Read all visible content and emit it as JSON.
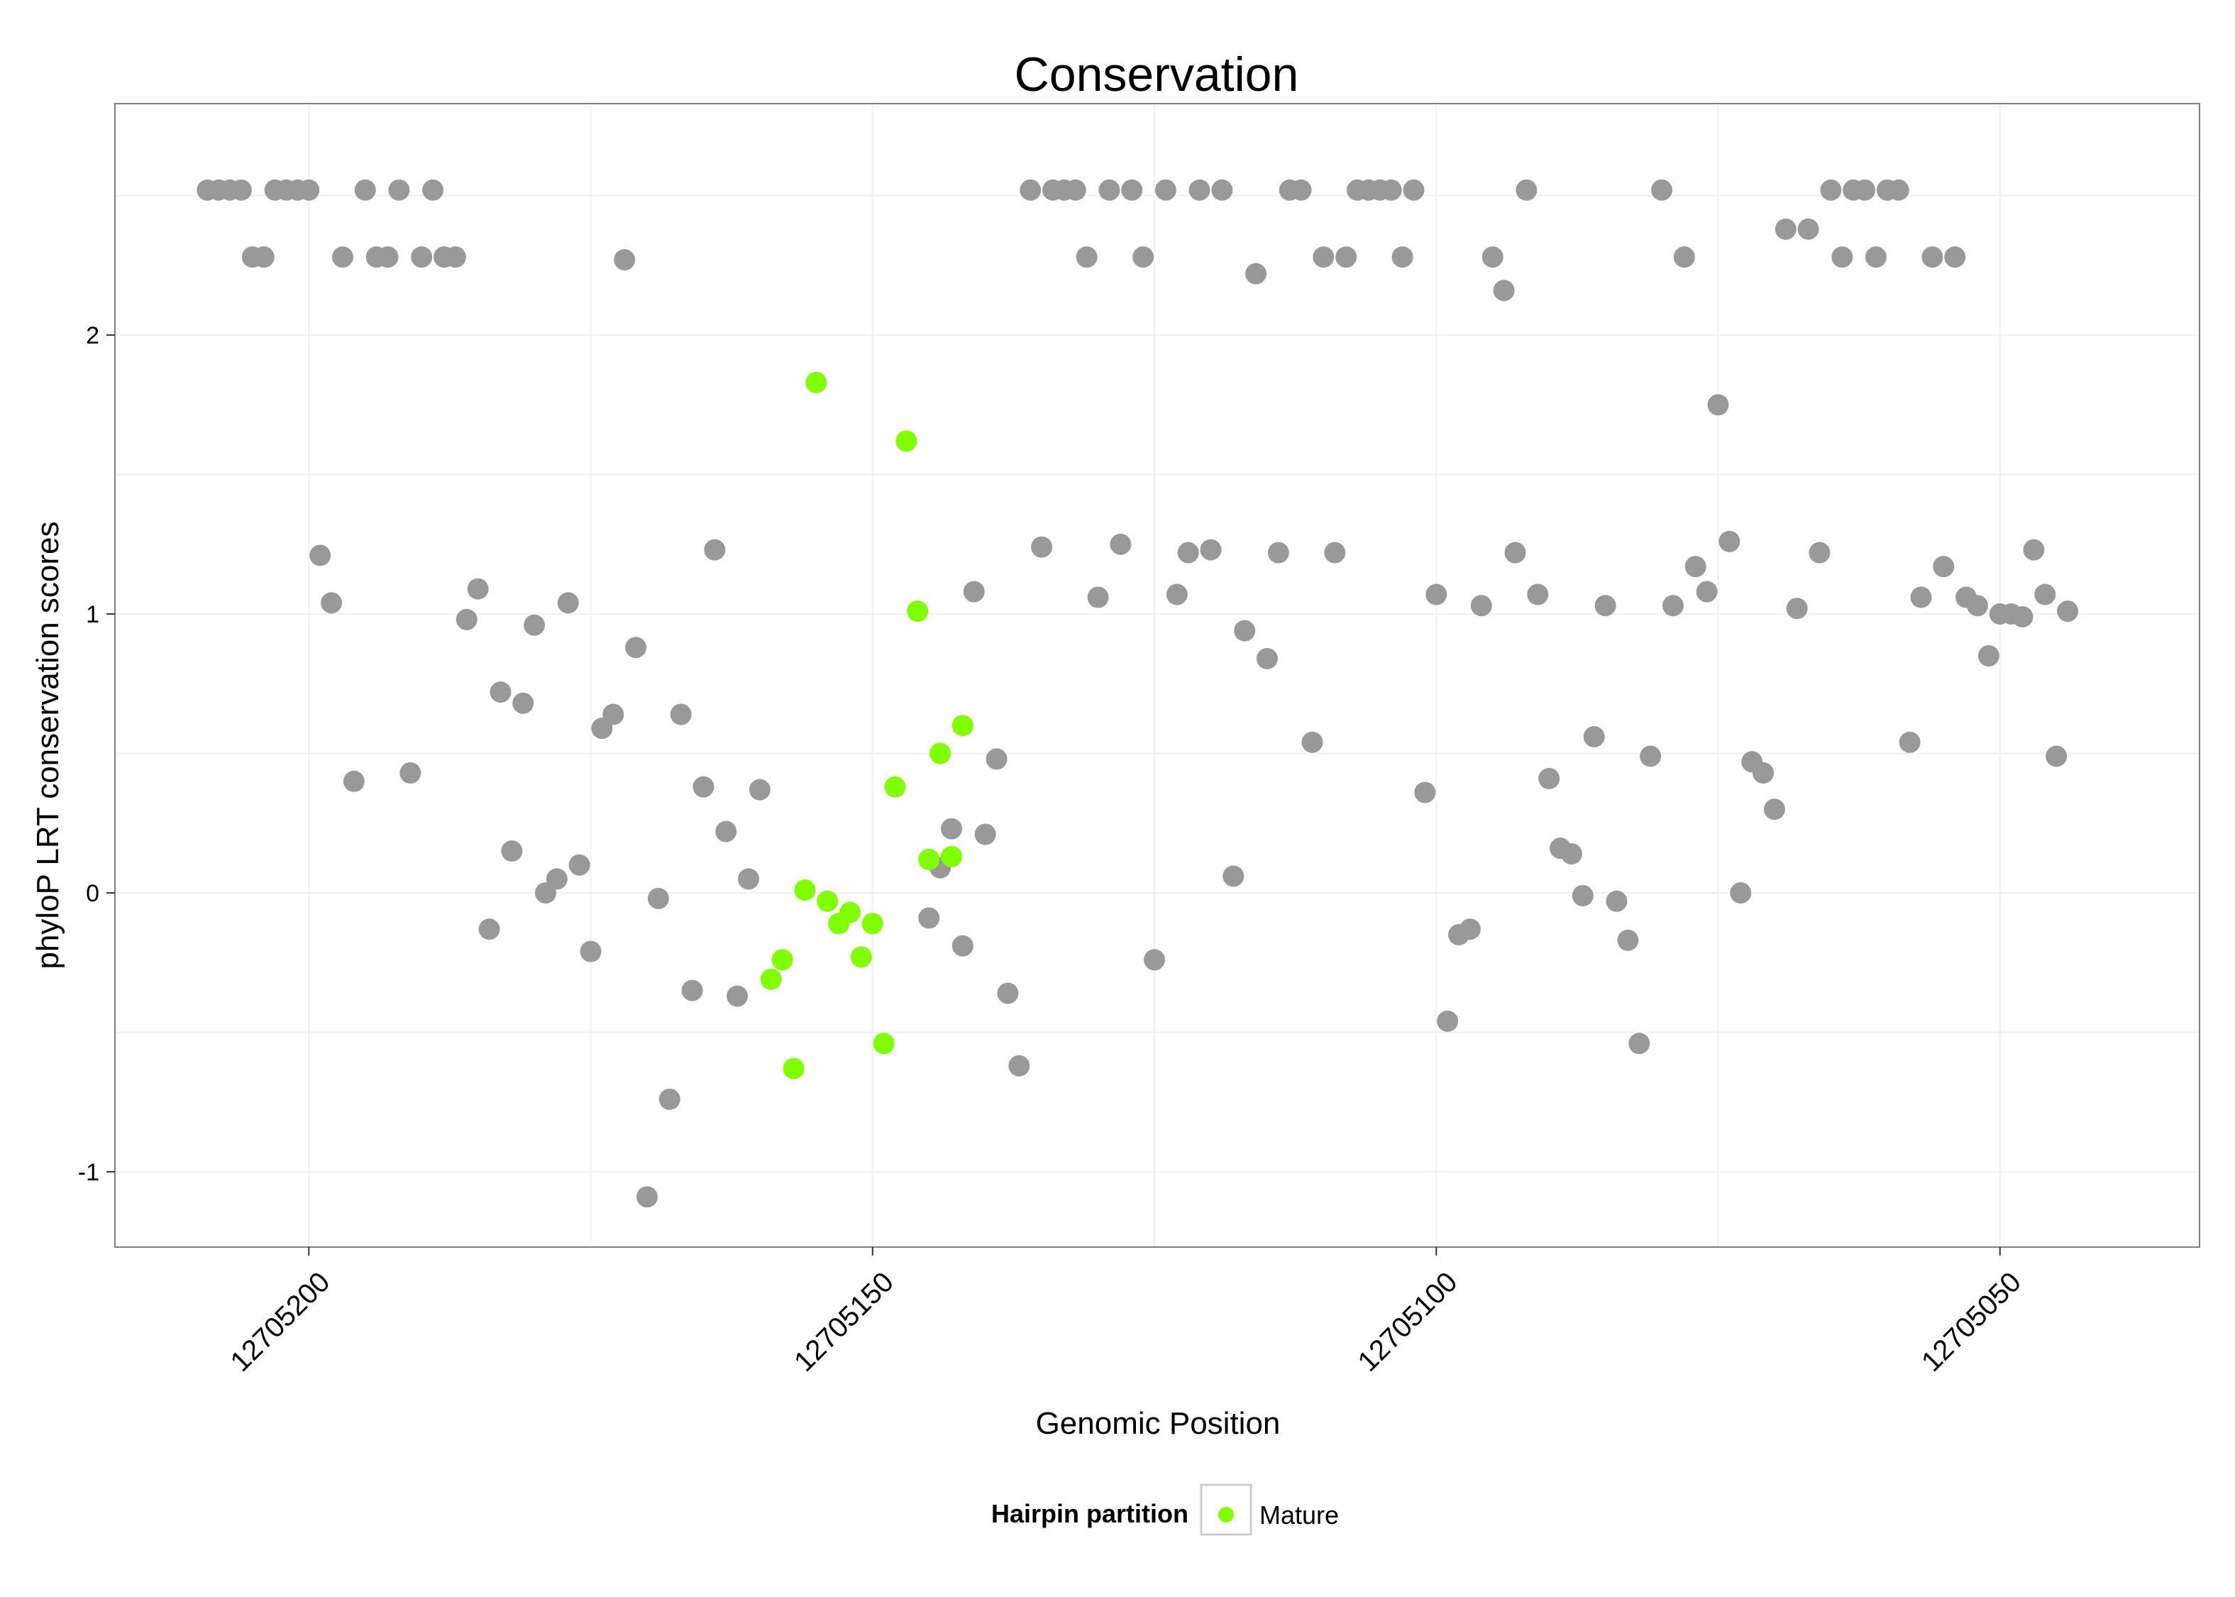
{
  "colors": {
    "background": "#ffffff",
    "panel_border": "#7f7f7f",
    "grid": "#f0f0f0",
    "other_point": "#999999",
    "mature_point": "#7fff00"
  },
  "chart_data": {
    "type": "scatter",
    "title": "Conservation",
    "xlabel": "Genomic Position",
    "ylabel": "phyloP LRT conservation scores",
    "xlim": [
      12705217.2,
      12705032.3
    ],
    "x_reversed": true,
    "ylim": [
      -1.27,
      2.83
    ],
    "x_ticks": [
      12705200,
      12705150,
      12705100,
      12705050
    ],
    "x_tick_labels": [
      "12705200",
      "12705150",
      "12705100",
      "12705050"
    ],
    "y_ticks": [
      -1,
      0,
      1,
      2
    ],
    "y_tick_labels": [
      "-1",
      "0",
      "1",
      "2"
    ],
    "grid": true,
    "legend": {
      "title": "Hairpin partition",
      "position": "bottom",
      "entries": [
        {
          "label": "Mature",
          "color": "#7fff00"
        }
      ]
    },
    "series": [
      {
        "name": "Other",
        "color": "#999999",
        "in_legend": false,
        "points": [
          [
            12705209,
            2.52
          ],
          [
            12705208,
            2.52
          ],
          [
            12705207,
            2.52
          ],
          [
            12705206,
            2.52
          ],
          [
            12705205,
            2.28
          ],
          [
            12705204,
            2.28
          ],
          [
            12705203,
            2.52
          ],
          [
            12705202,
            2.52
          ],
          [
            12705201,
            2.52
          ],
          [
            12705200,
            2.52
          ],
          [
            12705199,
            1.21
          ],
          [
            12705198,
            1.04
          ],
          [
            12705197,
            2.28
          ],
          [
            12705196,
            0.4
          ],
          [
            12705195,
            2.52
          ],
          [
            12705194,
            2.28
          ],
          [
            12705193,
            2.28
          ],
          [
            12705192,
            2.52
          ],
          [
            12705191,
            0.43
          ],
          [
            12705190,
            2.28
          ],
          [
            12705189,
            2.52
          ],
          [
            12705188,
            2.28
          ],
          [
            12705187,
            2.28
          ],
          [
            12705186,
            0.98
          ],
          [
            12705185,
            1.09
          ],
          [
            12705184,
            -0.13
          ],
          [
            12705183,
            0.72
          ],
          [
            12705182,
            0.15
          ],
          [
            12705181,
            0.68
          ],
          [
            12705180,
            0.96
          ],
          [
            12705179,
            0.0
          ],
          [
            12705178,
            0.05
          ],
          [
            12705177,
            1.04
          ],
          [
            12705176,
            0.1
          ],
          [
            12705175,
            -0.21
          ],
          [
            12705174,
            0.59
          ],
          [
            12705173,
            0.64
          ],
          [
            12705172,
            2.27
          ],
          [
            12705171,
            0.88
          ],
          [
            12705170,
            -1.09
          ],
          [
            12705169,
            -0.02
          ],
          [
            12705168,
            -0.74
          ],
          [
            12705167,
            0.64
          ],
          [
            12705166,
            -0.35
          ],
          [
            12705165,
            0.38
          ],
          [
            12705164,
            1.23
          ],
          [
            12705163,
            0.22
          ],
          [
            12705162,
            -0.37
          ],
          [
            12705161,
            0.05
          ],
          [
            12705160,
            0.37
          ],
          [
            12705145,
            -0.09
          ],
          [
            12705144,
            0.09
          ],
          [
            12705143,
            0.23
          ],
          [
            12705142,
            -0.19
          ],
          [
            12705141,
            1.08
          ],
          [
            12705140,
            0.21
          ],
          [
            12705139,
            0.48
          ],
          [
            12705138,
            -0.36
          ],
          [
            12705137,
            -0.62
          ],
          [
            12705136,
            2.52
          ],
          [
            12705135,
            1.24
          ],
          [
            12705134,
            2.52
          ],
          [
            12705133,
            2.52
          ],
          [
            12705132,
            2.52
          ],
          [
            12705131,
            2.28
          ],
          [
            12705130,
            1.06
          ],
          [
            12705129,
            2.52
          ],
          [
            12705128,
            1.25
          ],
          [
            12705127,
            2.52
          ],
          [
            12705126,
            2.28
          ],
          [
            12705125,
            -0.24
          ],
          [
            12705124,
            2.52
          ],
          [
            12705123,
            1.07
          ],
          [
            12705122,
            1.22
          ],
          [
            12705121,
            2.52
          ],
          [
            12705120,
            1.23
          ],
          [
            12705119,
            2.52
          ],
          [
            12705118,
            0.06
          ],
          [
            12705117,
            0.94
          ],
          [
            12705116,
            2.22
          ],
          [
            12705115,
            0.84
          ],
          [
            12705114,
            1.22
          ],
          [
            12705113,
            2.52
          ],
          [
            12705112,
            2.52
          ],
          [
            12705111,
            0.54
          ],
          [
            12705110,
            2.28
          ],
          [
            12705109,
            1.22
          ],
          [
            12705108,
            2.28
          ],
          [
            12705107,
            2.52
          ],
          [
            12705106,
            2.52
          ],
          [
            12705105,
            2.52
          ],
          [
            12705104,
            2.52
          ],
          [
            12705103,
            2.28
          ],
          [
            12705102,
            2.52
          ],
          [
            12705101,
            0.36
          ],
          [
            12705100,
            1.07
          ],
          [
            12705099,
            -0.46
          ],
          [
            12705098,
            -0.15
          ],
          [
            12705097,
            -0.13
          ],
          [
            12705096,
            1.03
          ],
          [
            12705095,
            2.28
          ],
          [
            12705094,
            2.16
          ],
          [
            12705093,
            1.22
          ],
          [
            12705092,
            2.52
          ],
          [
            12705091,
            1.07
          ],
          [
            12705090,
            0.41
          ],
          [
            12705089,
            0.16
          ],
          [
            12705088,
            0.14
          ],
          [
            12705087,
            -0.01
          ],
          [
            12705086,
            0.56
          ],
          [
            12705085,
            1.03
          ],
          [
            12705084,
            -0.03
          ],
          [
            12705083,
            -0.17
          ],
          [
            12705082,
            -0.54
          ],
          [
            12705081,
            0.49
          ],
          [
            12705080,
            2.52
          ],
          [
            12705079,
            1.03
          ],
          [
            12705078,
            2.28
          ],
          [
            12705077,
            1.17
          ],
          [
            12705076,
            1.08
          ],
          [
            12705075,
            1.75
          ],
          [
            12705074,
            1.26
          ],
          [
            12705073,
            0.0
          ],
          [
            12705072,
            0.47
          ],
          [
            12705071,
            0.43
          ],
          [
            12705070,
            0.3
          ],
          [
            12705069,
            2.38
          ],
          [
            12705068,
            1.02
          ],
          [
            12705067,
            2.38
          ],
          [
            12705066,
            1.22
          ],
          [
            12705065,
            2.52
          ],
          [
            12705064,
            2.28
          ],
          [
            12705063,
            2.52
          ],
          [
            12705062,
            2.52
          ],
          [
            12705061,
            2.28
          ],
          [
            12705060,
            2.52
          ],
          [
            12705059,
            2.52
          ],
          [
            12705058,
            0.54
          ],
          [
            12705057,
            1.06
          ],
          [
            12705056,
            2.28
          ],
          [
            12705055,
            1.17
          ],
          [
            12705054,
            2.28
          ],
          [
            12705053,
            1.06
          ],
          [
            12705052,
            1.03
          ],
          [
            12705051,
            0.85
          ],
          [
            12705050,
            1.0
          ],
          [
            12705049,
            1.0
          ],
          [
            12705048,
            0.99
          ],
          [
            12705047,
            1.23
          ],
          [
            12705046,
            1.07
          ],
          [
            12705045,
            0.49
          ],
          [
            12705044,
            1.01
          ]
        ]
      },
      {
        "name": "Mature",
        "color": "#7fff00",
        "in_legend": true,
        "points": [
          [
            12705159,
            -0.31
          ],
          [
            12705158,
            -0.24
          ],
          [
            12705157,
            -0.63
          ],
          [
            12705156,
            0.01
          ],
          [
            12705155,
            1.83
          ],
          [
            12705154,
            -0.03
          ],
          [
            12705153,
            -0.11
          ],
          [
            12705152,
            -0.07
          ],
          [
            12705151,
            -0.23
          ],
          [
            12705150,
            -0.11
          ],
          [
            12705149,
            -0.54
          ],
          [
            12705148,
            0.38
          ],
          [
            12705147,
            1.62
          ],
          [
            12705146,
            1.01
          ],
          [
            12705145,
            0.12
          ],
          [
            12705144,
            0.5
          ],
          [
            12705143,
            0.13
          ],
          [
            12705142,
            0.6
          ]
        ]
      }
    ]
  }
}
